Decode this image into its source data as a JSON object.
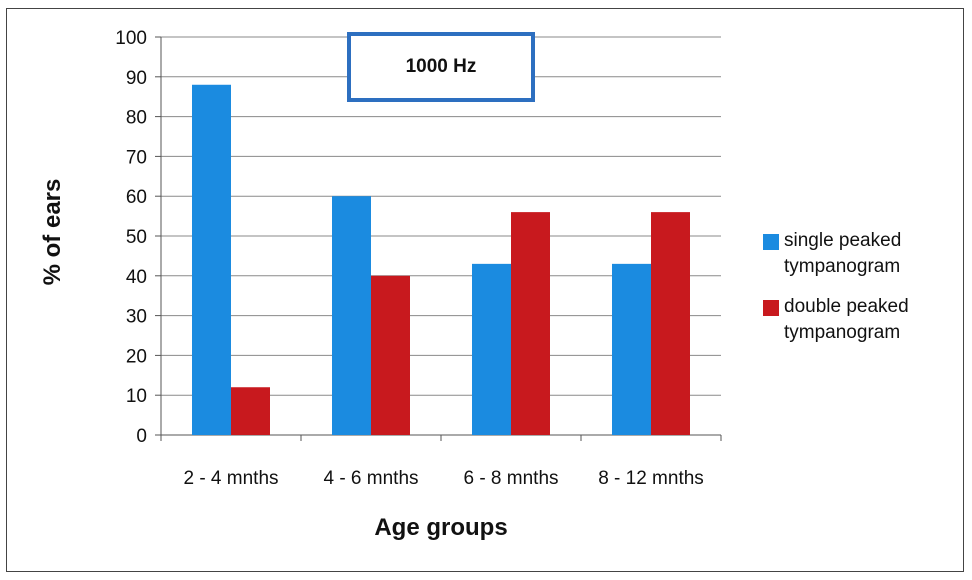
{
  "chart_data": {
    "type": "bar",
    "title": "1000 Hz",
    "xlabel": "Age groups",
    "ylabel": "% of ears",
    "ylim": [
      0,
      100
    ],
    "yticks": [
      0,
      10,
      20,
      30,
      40,
      50,
      60,
      70,
      80,
      90,
      100
    ],
    "grid": true,
    "legend_position": "right",
    "categories": [
      "2 - 4 mnths",
      "4 - 6 mnths",
      "6 - 8 mnths",
      "8 - 12 mnths"
    ],
    "series": [
      {
        "name": "single peaked tympanogram",
        "color": "#1b8be0",
        "values": [
          88,
          60,
          43,
          43
        ]
      },
      {
        "name": "double peaked tympanogram",
        "color": "#c8191e",
        "values": [
          12,
          40,
          56,
          56
        ]
      }
    ]
  },
  "legend": {
    "items": [
      {
        "label": "single peaked\ntympanogram",
        "color": "#1b8be0"
      },
      {
        "label": "double peaked\ntympanogram",
        "color": "#c8191e"
      }
    ]
  }
}
